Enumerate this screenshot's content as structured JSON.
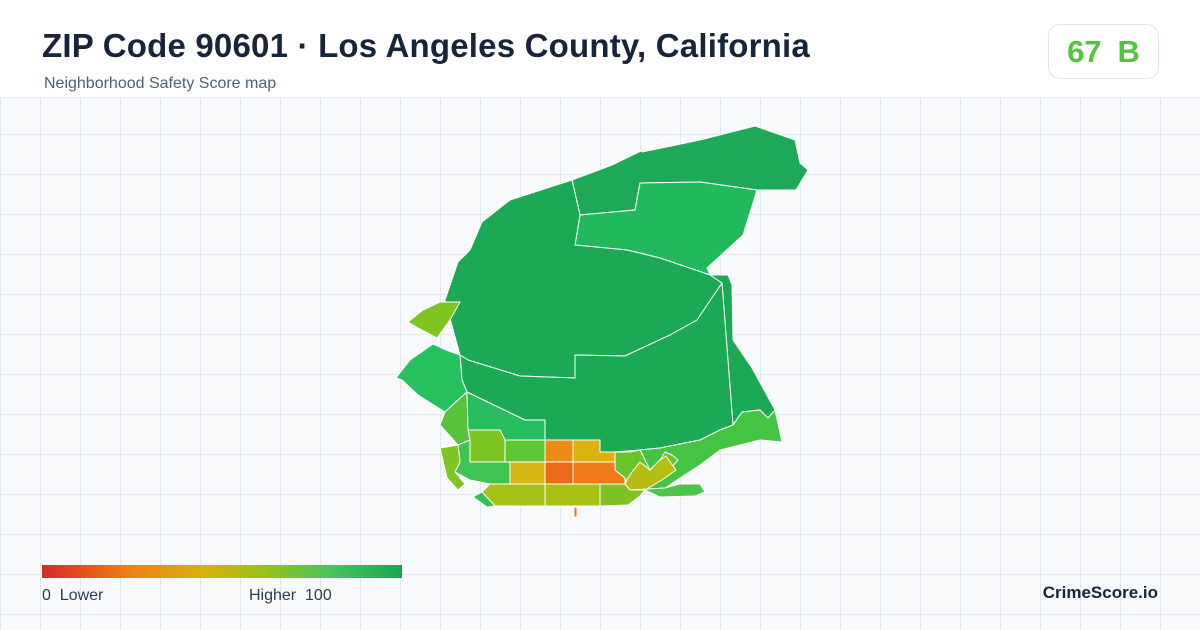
{
  "header": {
    "title": "ZIP Code 90601 · Los Angeles County, California",
    "subtitle": "Neighborhood Safety Score map"
  },
  "score": {
    "value": "67",
    "grade": "B",
    "color": "#55c43f"
  },
  "legend": {
    "min_value": "0",
    "min_label": "Lower",
    "max_label": "Higher",
    "max_value": "100",
    "colors": [
      "#d62a26",
      "#ef8214",
      "#d9b10f",
      "#97c21a",
      "#46c55a",
      "#1aa556"
    ]
  },
  "brand": "CrimeScore.io",
  "map_regions": [
    {
      "name": "north-east-strip",
      "color": "#1ea958"
    },
    {
      "name": "upper-east-band",
      "color": "#22b85c"
    },
    {
      "name": "north-central-large",
      "color": "#1ba956"
    },
    {
      "name": "east-sliver",
      "color": "#1ba956"
    },
    {
      "name": "south-central-large",
      "color": "#1ba956"
    },
    {
      "name": "west-lobe",
      "color": "#7fc520"
    },
    {
      "name": "northwest-wedge",
      "color": "#26c15e"
    },
    {
      "name": "west-mid",
      "color": "#57c33d"
    },
    {
      "name": "block-north-center",
      "color": "#27bd5e"
    },
    {
      "name": "southeast-arm",
      "color": "#45c444"
    },
    {
      "name": "block-a",
      "color": "#7ec623"
    },
    {
      "name": "block-b",
      "color": "#5ec534"
    },
    {
      "name": "block-c",
      "color": "#ee8b14"
    },
    {
      "name": "block-d",
      "color": "#dcb20f"
    },
    {
      "name": "block-e",
      "color": "#3fc352"
    },
    {
      "name": "block-f",
      "color": "#7ec623"
    },
    {
      "name": "block-g",
      "color": "#d7b614"
    },
    {
      "name": "block-h",
      "color": "#ec6b1a"
    },
    {
      "name": "block-i",
      "color": "#f07a18"
    },
    {
      "name": "block-j",
      "color": "#6bc528"
    },
    {
      "name": "block-k",
      "color": "#b4be12"
    },
    {
      "name": "south-strip-west",
      "color": "#a6c117"
    },
    {
      "name": "south-strip-center",
      "color": "#a9c114"
    },
    {
      "name": "south-strip-east",
      "color": "#7ec323"
    },
    {
      "name": "southeast-bottom",
      "color": "#4bc449"
    },
    {
      "name": "southwest-tip",
      "color": "#2ec35a"
    },
    {
      "name": "south-spike",
      "color": "#e57a14"
    }
  ]
}
